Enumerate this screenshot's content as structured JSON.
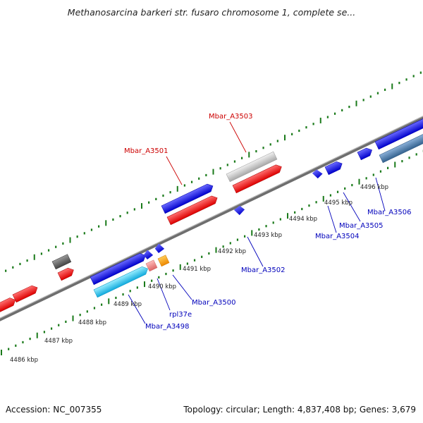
{
  "title": "Methanosarcina barkeri str. fusaro chromosome 1, complete se...",
  "footer": {
    "accession": "Accession: NC_007355",
    "stats": "Topology: circular; Length: 4,837,408 bp; Genes: 3,679"
  },
  "scale_labels": [
    "4486 kbp",
    "4487 kbp",
    "4488 kbp",
    "4489 kbp",
    "4490 kbp",
    "4491 kbp",
    "4492 kbp",
    "4493 kbp",
    "4494 kbp",
    "4495 kbp",
    "4496 kbp"
  ],
  "gene_labels": [
    {
      "text": "Mbar_A3501",
      "color": "#cc0000"
    },
    {
      "text": "Mbar_A3503",
      "color": "#cc0000"
    },
    {
      "text": "Mbar_A3502",
      "color": "#0000bb"
    },
    {
      "text": "Mbar_A3504",
      "color": "#0000bb"
    },
    {
      "text": "Mbar_A3505",
      "color": "#0000bb"
    },
    {
      "text": "Mbar_A3506",
      "color": "#0000bb"
    },
    {
      "text": "Mbar_A3500",
      "color": "#0000bb"
    },
    {
      "text": "rpl37e",
      "color": "#0000bb"
    },
    {
      "text": "Mbar_A3498",
      "color": "#0000bb"
    }
  ],
  "colors": {
    "red": "#ff1a1a",
    "blue": "#1a1aff",
    "grey": "#c8c8c8",
    "darkgrey": "#666666",
    "cyan": "#22ccee",
    "steel": "#4a7ab0",
    "pink": "#ee8888",
    "orange": "#ff9900",
    "axis": "#808080",
    "tick": "#1a7a1a"
  }
}
